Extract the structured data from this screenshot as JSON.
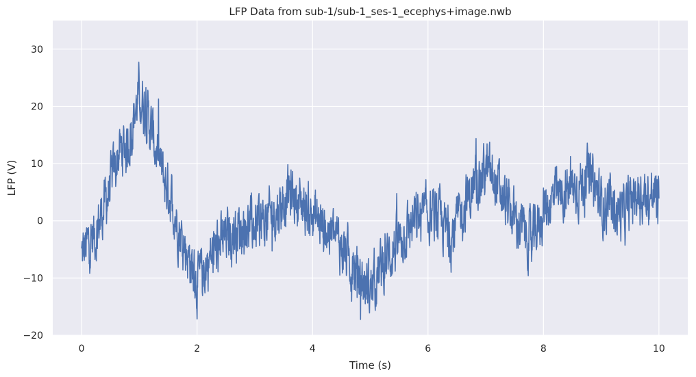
{
  "chart_data": {
    "type": "line",
    "title": "LFP Data from sub-1/sub-1_ses-1_ecephys+image.nwb",
    "xlabel": "Time (s)",
    "ylabel": "LFP (V)",
    "xlim": [
      -0.5,
      10.5
    ],
    "ylim": [
      -20,
      35
    ],
    "xticks": [
      0,
      2,
      4,
      6,
      8,
      10
    ],
    "xtick_labels": [
      "0",
      "2",
      "4",
      "6",
      "8",
      "10"
    ],
    "yticks": [
      -20,
      -10,
      0,
      10,
      20,
      30
    ],
    "ytick_labels": [
      "−20",
      "−10",
      "0",
      "10",
      "20",
      "30"
    ],
    "grid": true,
    "legend": "none",
    "colors": {
      "plot_bg": "#eaeaf2",
      "grid": "#ffffff",
      "line": "#4c72b0",
      "text": "#262626"
    },
    "series": [
      {
        "x": [
          0,
          0.25,
          0.5,
          0.65,
          0.8,
          0.9,
          1.0,
          1.1,
          1.25,
          1.4,
          1.55,
          1.7,
          1.85,
          2.0,
          2.2,
          2.4,
          2.6,
          2.8,
          3.0,
          3.2,
          3.4,
          3.6,
          3.8,
          4.0,
          4.2,
          4.4,
          4.6,
          4.8,
          5.0,
          5.2,
          5.4,
          5.6,
          5.8,
          6.0,
          6.2,
          6.4,
          6.6,
          6.8,
          7.0,
          7.2,
          7.4,
          7.6,
          7.8,
          8.0,
          8.2,
          8.4,
          8.6,
          8.8,
          9.0,
          9.2,
          9.4,
          9.6,
          9.8,
          10.0
        ],
        "values": [
          -6,
          -2,
          6,
          12,
          13,
          18,
          22,
          20,
          14,
          8,
          4,
          -2,
          -6,
          -11,
          -7,
          -4,
          -2,
          -1,
          -1,
          0,
          2,
          5,
          3,
          1,
          -1,
          -3,
          -6,
          -10,
          -12,
          -8,
          -5,
          -2,
          0,
          1,
          0,
          -3,
          2,
          6,
          9,
          6,
          2,
          -1,
          -4,
          2,
          4,
          5,
          6,
          8,
          3,
          2,
          1,
          5,
          4,
          4
        ]
      }
    ]
  }
}
